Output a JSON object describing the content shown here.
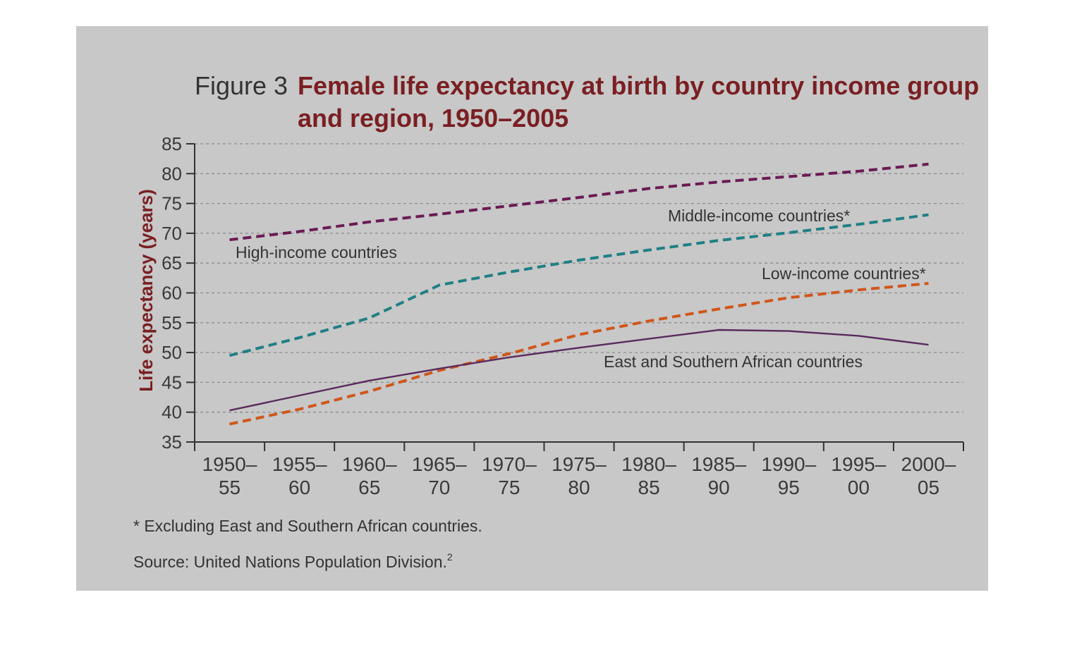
{
  "figure": {
    "label": "Figure 3",
    "title_line1": "Female life expectancy at birth by country income group",
    "title_line2": "and region, 1950–2005"
  },
  "notes": {
    "footnote": "* Excluding East and Southern African countries.",
    "source": "Source: United Nations Population Division.",
    "source_superscript": "2"
  },
  "colors": {
    "panel_background": "#c8c8c8",
    "title": "#7a1f22",
    "high_income": "#6b1a55",
    "middle_income": "#1f7f85",
    "low_income": "#d0561a",
    "east_southern_africa": "#5a2a5e",
    "gridline": "#8c8c8c"
  },
  "chart_data": {
    "type": "line",
    "title": "Female life expectancy at birth by country income group and region, 1950–2005",
    "xlabel": "",
    "ylabel": "Life expectancy (years)",
    "ylim": [
      35,
      85
    ],
    "yticks": [
      35,
      40,
      45,
      50,
      55,
      60,
      65,
      70,
      75,
      80,
      85
    ],
    "grid": "horizontal dashed",
    "categories": [
      [
        "1950–",
        "55"
      ],
      [
        "1955–",
        "60"
      ],
      [
        "1960–",
        "65"
      ],
      [
        "1965–",
        "70"
      ],
      [
        "1970–",
        "75"
      ],
      [
        "1975–",
        "80"
      ],
      [
        "1980–",
        "85"
      ],
      [
        "1985–",
        "90"
      ],
      [
        "1990–",
        "95"
      ],
      [
        "1995–",
        "00"
      ],
      [
        "2000–",
        "05"
      ]
    ],
    "series": [
      {
        "name": "High-income countries",
        "style": "dashed",
        "color": "#6b1a55",
        "values": [
          68.9,
          70.3,
          71.9,
          73.2,
          74.6,
          76.0,
          77.5,
          78.6,
          79.5,
          80.4,
          81.6
        ]
      },
      {
        "name": "Middle-income countries*",
        "style": "dashed",
        "color": "#1f7f85",
        "values": [
          49.5,
          52.5,
          55.8,
          61.3,
          63.5,
          65.5,
          67.2,
          68.8,
          70.1,
          71.5,
          73.1
        ]
      },
      {
        "name": "Low-income countries*",
        "style": "dashed",
        "color": "#d0561a",
        "values": [
          38.0,
          40.5,
          43.5,
          47.0,
          49.8,
          53.0,
          55.3,
          57.3,
          59.2,
          60.5,
          61.6
        ]
      },
      {
        "name": "East and Southern African countries",
        "style": "solid",
        "color": "#5a2a5e",
        "values": [
          40.3,
          42.8,
          45.3,
          47.3,
          49.2,
          50.8,
          52.3,
          53.8,
          53.6,
          52.8,
          51.3
        ]
      }
    ]
  }
}
